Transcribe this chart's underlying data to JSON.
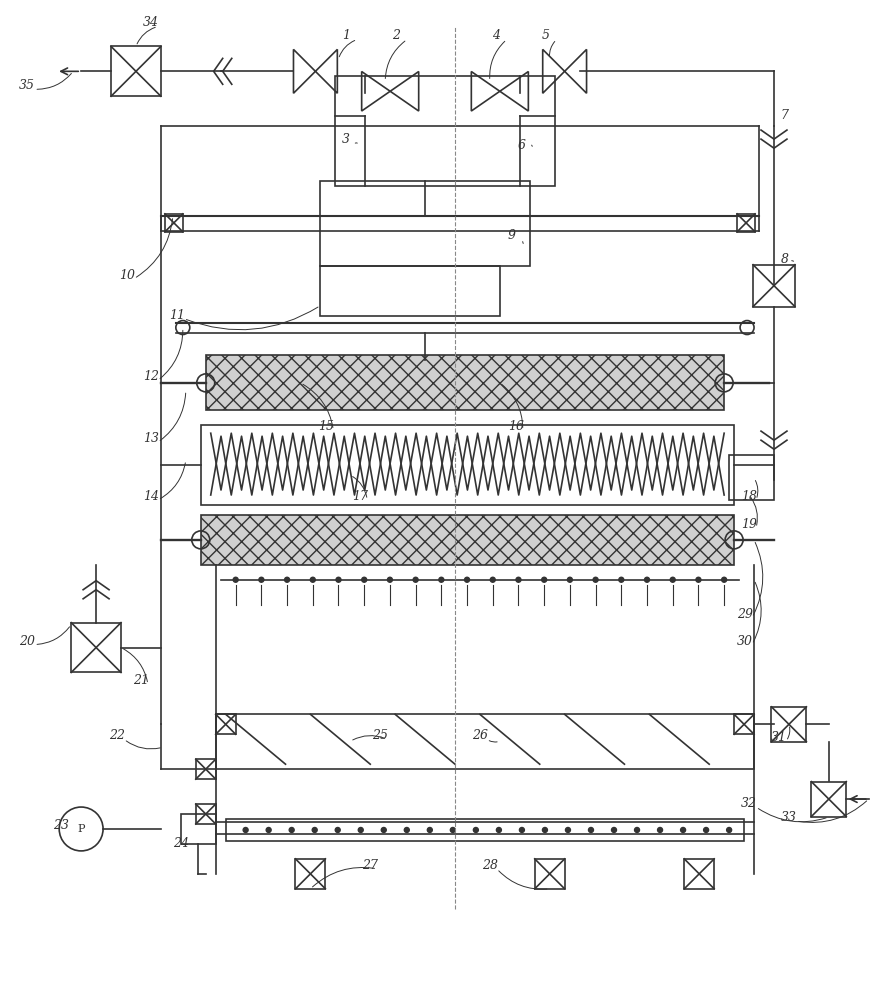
{
  "fig_width": 8.95,
  "fig_height": 10.0,
  "dpi": 100,
  "bg_color": "#ffffff",
  "line_color": "#333333",
  "lw": 1.2
}
